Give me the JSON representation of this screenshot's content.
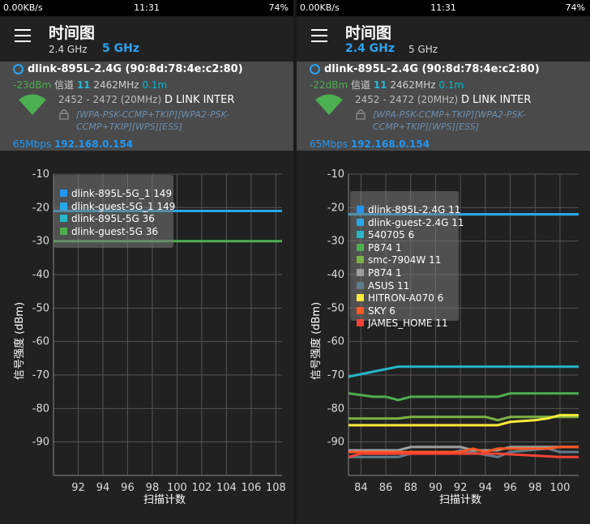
{
  "screens": [
    {
      "status": {
        "speed": "0.00KB/s",
        "time": "11:31",
        "battery": "74%"
      },
      "app_title": "时间图",
      "bands": [
        {
          "label": "2.4 GHz",
          "active": false
        },
        {
          "label": "5 GHz",
          "active": true
        }
      ],
      "network": {
        "ssid": "dlink-895L-2.4G (90:8d:78:4e:c2:80)",
        "signal_dbm": "-23dBm",
        "channel_label": "信道",
        "channel": "11",
        "frequency": "2462MHz",
        "distance": "0.1m",
        "range": "2452 - 2472 (20MHz)",
        "vendor": "D LINK INTER",
        "security": "[WPA-PSK-CCMP+TKIP][WPA2-PSK-CCMP+TKIP][WPS][ESS]",
        "speed": "65Mbps",
        "ip": "192.168.0.154"
      },
      "chart_data": {
        "type": "line",
        "xlabel": "扫描计数",
        "ylabel": "信号强度 (dBm)",
        "x_ticks": [
          "92",
          "94",
          "96",
          "98",
          "100",
          "102",
          "104",
          "106",
          "108"
        ],
        "xlim": [
          90,
          108.5
        ],
        "ylim": [
          -100,
          -10
        ],
        "y_ticks": [
          -10,
          -20,
          -30,
          -40,
          -50,
          -60,
          -70,
          -80,
          -90
        ],
        "grid": true,
        "legend_position": "top-left",
        "series": [
          {
            "name": "dlink-895L-5G_1 149",
            "color": "#2196f3",
            "x": [
              90,
              108.5
            ],
            "values": [
              null,
              null
            ]
          },
          {
            "name": "dlink-guest-5G_1 149",
            "color": "#29a8e8",
            "x": [
              90,
              108.5
            ],
            "values": [
              -21,
              -21
            ]
          },
          {
            "name": "dlink-895L-5G 36",
            "color": "#26b6c8",
            "x": [
              90,
              108.5
            ],
            "values": [
              null,
              null
            ]
          },
          {
            "name": "dlink-guest-5G 36",
            "color": "#4caf50",
            "x": [
              90,
              108.5
            ],
            "values": [
              -30,
              -30
            ]
          }
        ]
      }
    },
    {
      "status": {
        "speed": "0.00KB/s",
        "time": "11:31",
        "battery": "74%"
      },
      "app_title": "时间图",
      "bands": [
        {
          "label": "2.4 GHz",
          "active": true
        },
        {
          "label": "5 GHz",
          "active": false
        }
      ],
      "network": {
        "ssid": "dlink-895L-2.4G (90:8d:78:4e:c2:80)",
        "signal_dbm": "-22dBm",
        "channel_label": "信道",
        "channel": "11",
        "frequency": "2462MHz",
        "distance": "0.1m",
        "range": "2452 - 2472 (20MHz)",
        "vendor": "D LINK INTER",
        "security": "[WPA-PSK-CCMP+TKIP][WPA2-PSK-CCMP+TKIP][WPS][ESS]",
        "speed": "65Mbps",
        "ip": "192.168.0.154"
      },
      "chart_data": {
        "type": "line",
        "xlabel": "扫描计数",
        "ylabel": "信号强度 (dBm)",
        "x_ticks": [
          "84",
          "86",
          "88",
          "90",
          "92",
          "94",
          "96",
          "98",
          "100"
        ],
        "xlim": [
          83,
          101.5
        ],
        "ylim": [
          -100,
          -10
        ],
        "y_ticks": [
          -10,
          -20,
          -30,
          -40,
          -50,
          -60,
          -70,
          -80,
          -90
        ],
        "grid": true,
        "legend_position": "top-left",
        "series": [
          {
            "name": "dlink-895L-2.4G 11",
            "color": "#2196f3",
            "x": [
              83,
              101.5
            ],
            "values": [
              -22,
              -22
            ]
          },
          {
            "name": "dlink-guest-2.4G 11",
            "color": "#29a8e8",
            "x": [
              83,
              101.5
            ],
            "values": [
              -22,
              -22
            ]
          },
          {
            "name": "540705 6",
            "color": "#26b6c8",
            "x": [
              83,
              85,
              87,
              101.5
            ],
            "values": [
              -70.5,
              -69,
              -67.5,
              -67.5
            ]
          },
          {
            "name": "P874 1",
            "color": "#4caf50",
            "x": [
              83,
              85,
              86,
              87,
              88,
              94,
              95,
              96,
              101.5
            ],
            "values": [
              -75.5,
              -76.5,
              -76.5,
              -77.5,
              -76.5,
              -76.5,
              -76.5,
              -75.5,
              -75.5
            ]
          },
          {
            "name": "smc-7904W 11",
            "color": "#7cb342",
            "x": [
              83,
              87,
              88,
              94,
              95,
              96,
              101.5
            ],
            "values": [
              -83,
              -83,
              -82.5,
              -82.5,
              -83.5,
              -82.5,
              -82.5
            ]
          },
          {
            "name": "P874 1",
            "color": "#9e9e9e",
            "x": [
              83,
              87,
              88,
              92,
              93,
              95,
              96,
              99,
              101.5
            ],
            "values": [
              -92.5,
              -92.5,
              -91.5,
              -91.5,
              -92.5,
              -92.5,
              -91.5,
              -91.5,
              -91.5
            ]
          },
          {
            "name": "ASUS 11",
            "color": "#607d8b",
            "x": [
              83,
              87,
              88,
              91,
              92,
              95,
              96,
              99,
              100,
              101.5
            ],
            "values": [
              -94.5,
              -94.5,
              -93.5,
              -93.5,
              -92.5,
              -94.5,
              -93,
              -92,
              -93,
              -93
            ]
          },
          {
            "name": "HITRON-A070 6",
            "color": "#ffeb3b",
            "x": [
              83,
              95,
              96,
              98,
              99,
              100,
              101.5
            ],
            "values": [
              -85,
              -85,
              -84,
              -83.5,
              -83,
              -82,
              -82
            ]
          },
          {
            "name": "SKY 6",
            "color": "#ff5722",
            "x": [
              83,
              92,
              93,
              94,
              95,
              99,
              100,
              101.5
            ],
            "values": [
              -93,
              -93,
              -92,
              -93,
              -92,
              -92,
              -91.5,
              -91.5
            ]
          },
          {
            "name": "JAMES_HOME 11",
            "color": "#f44336",
            "x": [
              83,
              84,
              95,
              100,
              101.5
            ],
            "values": [
              -94.5,
              -93.5,
              -93.5,
              -94.5,
              -94.5
            ]
          }
        ]
      }
    }
  ]
}
